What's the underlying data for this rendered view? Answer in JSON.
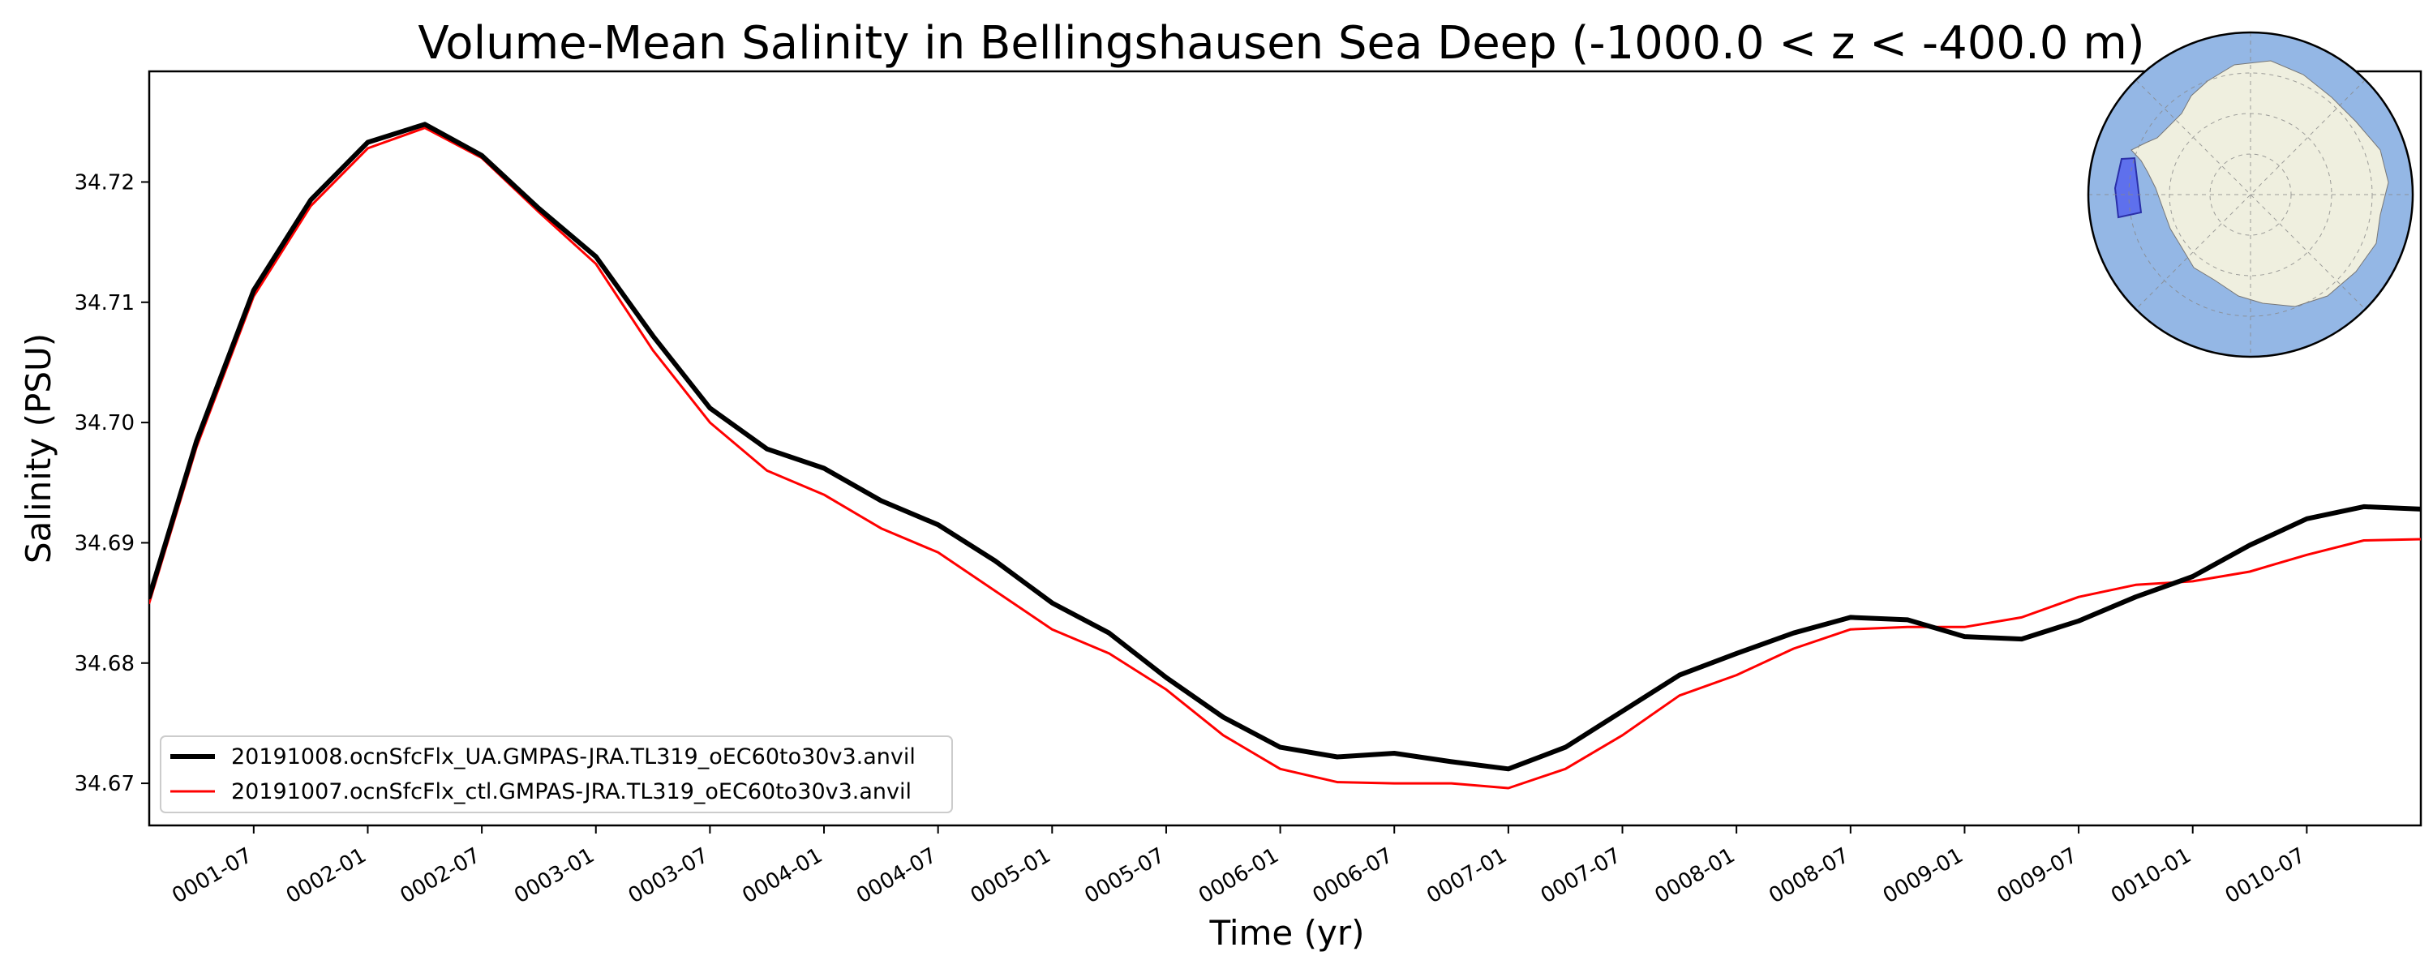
{
  "chart_data": {
    "type": "line",
    "title": "Volume-Mean Salinity in Bellingshausen Sea Deep (-1000.0 < z < -400.0 m)",
    "xlabel": "Time (yr)",
    "ylabel": "Salinity (PSU)",
    "x_ticks": [
      "0001-07",
      "0002-01",
      "0002-07",
      "0003-01",
      "0003-07",
      "0004-01",
      "0004-07",
      "0005-01",
      "0005-07",
      "0006-01",
      "0006-07",
      "0007-01",
      "0007-07",
      "0008-01",
      "0008-07",
      "0009-01",
      "0009-07",
      "0010-01",
      "0010-07"
    ],
    "y_ticks": [
      "34.67",
      "34.68",
      "34.69",
      "34.70",
      "34.71",
      "34.72"
    ],
    "xlim": [
      0.042,
      10.0
    ],
    "ylim": [
      34.6665,
      34.7292
    ],
    "grid": false,
    "legend_position": "lower-left",
    "colors": {
      "series_ua": "#000000",
      "series_ctl": "#ff0000",
      "ocean": "#94b7e5",
      "land": "#efefdf",
      "region": "#5564ee"
    },
    "inset": {
      "type": "antarctic-polar-map",
      "highlight_region": "Bellingshausen Sea"
    },
    "series": [
      {
        "name": "20191008.ocnSfcFlx_UA.GMPAS-JRA.TL319_oEC60to30v3.anvil",
        "x": [
          0.042,
          0.25,
          0.5,
          0.75,
          1.0,
          1.25,
          1.5,
          1.75,
          2.0,
          2.25,
          2.5,
          2.75,
          3.0,
          3.25,
          3.5,
          3.75,
          4.0,
          4.25,
          4.5,
          4.75,
          5.0,
          5.25,
          5.5,
          5.75,
          6.0,
          6.25,
          6.5,
          6.75,
          7.0,
          7.25,
          7.5,
          7.75,
          8.0,
          8.25,
          8.5,
          8.75,
          9.0,
          9.25,
          9.5,
          9.75,
          10.0
        ],
        "y": [
          34.6855,
          34.6985,
          34.711,
          34.7185,
          34.7233,
          34.7248,
          34.7222,
          34.7178,
          34.7138,
          34.7072,
          34.7012,
          34.6978,
          34.6962,
          34.6935,
          34.6915,
          34.6885,
          34.685,
          34.6825,
          34.6788,
          34.6755,
          34.673,
          34.6722,
          34.6725,
          34.6718,
          34.6712,
          34.673,
          34.676,
          34.679,
          34.6808,
          34.6825,
          34.6838,
          34.6836,
          34.6822,
          34.682,
          34.6835,
          34.6855,
          34.6872,
          34.6898,
          34.692,
          34.693,
          34.6928
        ]
      },
      {
        "name": "20191007.ocnSfcFlx_ctl.GMPAS-JRA.TL319_oEC60to30v3.anvil",
        "x": [
          0.042,
          0.25,
          0.5,
          0.75,
          1.0,
          1.25,
          1.5,
          1.75,
          2.0,
          2.25,
          2.5,
          2.75,
          3.0,
          3.25,
          3.5,
          3.75,
          4.0,
          4.25,
          4.5,
          4.75,
          5.0,
          5.25,
          5.5,
          5.75,
          6.0,
          6.25,
          6.5,
          6.75,
          7.0,
          7.25,
          7.5,
          7.75,
          8.0,
          8.25,
          8.5,
          8.75,
          9.0,
          9.25,
          9.5,
          9.75,
          10.0
        ],
        "y": [
          34.685,
          34.698,
          34.7105,
          34.718,
          34.7228,
          34.7245,
          34.722,
          34.7175,
          34.7132,
          34.706,
          34.7,
          34.696,
          34.694,
          34.6912,
          34.6892,
          34.686,
          34.6828,
          34.6808,
          34.6778,
          34.674,
          34.6712,
          34.6701,
          34.67,
          34.67,
          34.6696,
          34.6712,
          34.674,
          34.6773,
          34.679,
          34.6812,
          34.6828,
          34.683,
          34.683,
          34.6838,
          34.6855,
          34.6865,
          34.6868,
          34.6876,
          34.689,
          34.6902,
          34.6903
        ]
      }
    ]
  }
}
